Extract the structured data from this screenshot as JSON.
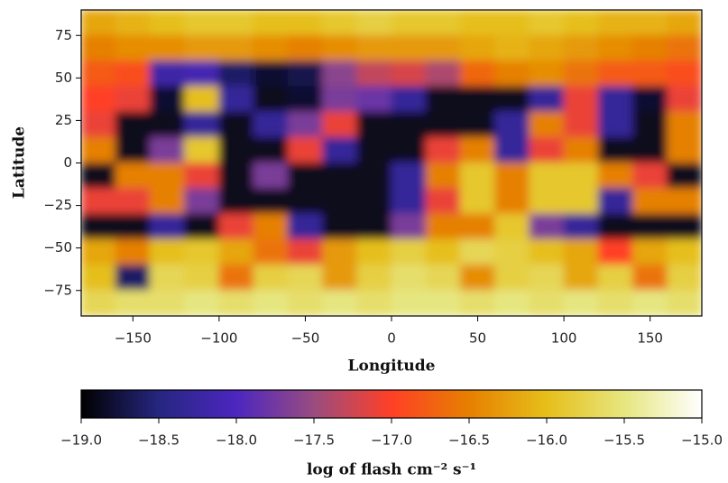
{
  "chart_data": {
    "type": "heatmap",
    "xlabel": "Longitude",
    "ylabel": "Latitude",
    "colorbar_label": "log of flash cm⁻² s⁻¹",
    "xlim": [
      -180,
      180
    ],
    "ylim": [
      -90,
      90
    ],
    "xticks": [
      {
        "value": -150,
        "label": "−150"
      },
      {
        "value": -100,
        "label": "−100"
      },
      {
        "value": -50,
        "label": "−50"
      },
      0,
      50,
      100,
      150
    ],
    "yticks": [
      {
        "value": -75,
        "label": "−75"
      },
      {
        "value": -50,
        "label": "−50"
      },
      {
        "value": -25,
        "label": "−25"
      },
      0,
      25,
      50,
      75
    ],
    "clim": [
      -19,
      -15
    ],
    "cticks": [
      {
        "value": -19,
        "label": "−19.0"
      },
      {
        "value": -18.5,
        "label": "−18.5"
      },
      {
        "value": -18,
        "label": "−18.0"
      },
      {
        "value": -17.5,
        "label": "−17.5"
      },
      {
        "value": -17,
        "label": "−17.0"
      },
      {
        "value": -16.5,
        "label": "−16.5"
      },
      {
        "value": -16,
        "label": "−16.0"
      },
      {
        "value": -15.5,
        "label": "−15.5"
      },
      {
        "value": -15,
        "label": "−15.0"
      }
    ],
    "colormap": [
      "#000000",
      "#262680",
      "#4c26bf",
      "#994c80",
      "#ff4026",
      "#e68000",
      "#e6bf1a",
      "#e6e680",
      "#ffffff"
    ],
    "x": [
      -170,
      -150,
      -130,
      -110,
      -90,
      -70,
      -50,
      -30,
      -10,
      10,
      30,
      50,
      70,
      90,
      110,
      130,
      150,
      170
    ],
    "y": [
      82.5,
      67.5,
      52.5,
      37.5,
      22.5,
      7.5,
      -7.5,
      -22.5,
      -37.5,
      -52.5,
      -67.5,
      -82.5
    ],
    "z": [
      [
        -16.2,
        -16.1,
        -16.0,
        -15.9,
        -15.9,
        -16.0,
        -16.0,
        -15.9,
        -15.8,
        -15.9,
        -15.9,
        -16.0,
        -16.0,
        -15.9,
        -16.0,
        -16.1,
        -16.1,
        -16.2
      ],
      [
        -16.5,
        -16.4,
        -16.4,
        -16.3,
        -16.3,
        -16.4,
        -16.5,
        -16.4,
        -16.3,
        -16.3,
        -16.3,
        -16.2,
        -16.1,
        -16.2,
        -16.3,
        -16.4,
        -16.5,
        -16.6
      ],
      [
        -16.8,
        -16.9,
        -18.2,
        -18.1,
        -18.6,
        -18.8,
        -18.7,
        -17.6,
        -17.3,
        -17.2,
        -17.4,
        -16.7,
        -16.5,
        -16.4,
        -16.6,
        -16.8,
        -16.8,
        -16.9
      ],
      [
        -17.0,
        -17.1,
        -18.8,
        -16.0,
        -18.3,
        -18.9,
        -18.8,
        -17.7,
        -17.8,
        -18.3,
        -18.9,
        -18.9,
        -18.9,
        -18.3,
        -17.1,
        -18.3,
        -18.8,
        -17.1
      ],
      [
        -17.1,
        -18.9,
        -18.9,
        -18.3,
        -18.9,
        -18.3,
        -17.7,
        -17.1,
        -18.9,
        -18.9,
        -18.9,
        -18.9,
        -18.3,
        -16.5,
        -17.1,
        -18.3,
        -18.9,
        -16.5
      ],
      [
        -16.5,
        -18.9,
        -17.7,
        -15.9,
        -18.9,
        -18.9,
        -17.1,
        -18.3,
        -18.9,
        -18.9,
        -17.1,
        -16.5,
        -18.3,
        -17.1,
        -16.5,
        -18.9,
        -18.9,
        -16.5
      ],
      [
        -18.9,
        -16.5,
        -16.5,
        -17.1,
        -18.9,
        -17.7,
        -18.9,
        -18.9,
        -18.9,
        -18.3,
        -16.5,
        -15.9,
        -16.5,
        -15.9,
        -15.9,
        -16.5,
        -17.1,
        -18.9
      ],
      [
        -17.1,
        -17.1,
        -16.5,
        -17.7,
        -18.9,
        -18.9,
        -18.9,
        -18.9,
        -18.9,
        -18.3,
        -17.1,
        -15.9,
        -16.5,
        -15.9,
        -15.9,
        -18.3,
        -16.5,
        -16.5
      ],
      [
        -18.9,
        -18.9,
        -18.3,
        -18.9,
        -17.1,
        -16.5,
        -18.3,
        -18.9,
        -18.9,
        -17.7,
        -16.5,
        -16.5,
        -15.9,
        -17.7,
        -18.3,
        -18.9,
        -18.9,
        -18.9
      ],
      [
        -16.2,
        -16.5,
        -16.0,
        -15.9,
        -16.2,
        -16.6,
        -17.1,
        -16.3,
        -16.0,
        -15.8,
        -16.0,
        -15.7,
        -15.8,
        -16.0,
        -16.2,
        -17.0,
        -16.2,
        -16.0
      ],
      [
        -16.0,
        -18.6,
        -15.7,
        -15.8,
        -16.6,
        -15.8,
        -15.7,
        -16.3,
        -15.8,
        -15.6,
        -15.7,
        -16.4,
        -15.8,
        -15.7,
        -16.2,
        -15.8,
        -16.6,
        -15.8
      ],
      [
        -15.7,
        -15.6,
        -15.6,
        -15.5,
        -15.6,
        -15.5,
        -15.6,
        -15.5,
        -15.6,
        -15.5,
        -15.5,
        -15.6,
        -15.5,
        -15.6,
        -15.5,
        -15.6,
        -15.5,
        -15.6
      ]
    ]
  }
}
